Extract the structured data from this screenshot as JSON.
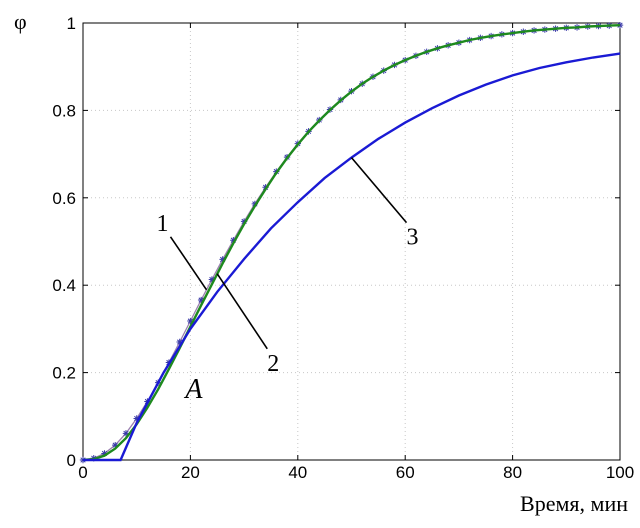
{
  "chart_data": {
    "type": "line",
    "title": "",
    "xlabel": "Время, мин",
    "ylabel": "φ",
    "xlim": [
      0,
      100
    ],
    "ylim": [
      0,
      1
    ],
    "x_ticks": [
      "0",
      "20",
      "40",
      "60",
      "80",
      "100"
    ],
    "y_ticks": [
      "0",
      "0.2",
      "0.4",
      "0.6",
      "0.8",
      "1"
    ],
    "grid": true,
    "series": [
      {
        "name": "1",
        "color": "#9a7fb0",
        "marker": "star",
        "x": [
          0,
          2,
          4,
          6,
          8,
          10,
          12,
          14,
          16,
          18,
          20,
          22,
          24,
          26,
          28,
          30,
          32,
          34,
          36,
          38,
          40,
          42,
          44,
          46,
          48,
          50,
          52,
          54,
          56,
          58,
          60,
          62,
          64,
          66,
          68,
          70,
          72,
          74,
          76,
          78,
          80,
          82,
          84,
          86,
          88,
          90,
          92,
          94,
          96,
          98,
          100
        ],
        "y": [
          0.0,
          0.004,
          0.015,
          0.034,
          0.061,
          0.095,
          0.134,
          0.177,
          0.223,
          0.27,
          0.318,
          0.366,
          0.413,
          0.459,
          0.503,
          0.546,
          0.586,
          0.624,
          0.66,
          0.693,
          0.724,
          0.752,
          0.778,
          0.802,
          0.824,
          0.844,
          0.861,
          0.877,
          0.891,
          0.904,
          0.915,
          0.925,
          0.934,
          0.942,
          0.949,
          0.955,
          0.961,
          0.966,
          0.97,
          0.974,
          0.977,
          0.98,
          0.983,
          0.985,
          0.987,
          0.989,
          0.99,
          0.992,
          0.993,
          0.994,
          0.995
        ]
      },
      {
        "name": "2",
        "color": "#1e8a1e",
        "x": [
          0,
          2,
          4,
          6,
          8,
          10,
          12,
          14,
          16,
          18,
          20,
          22,
          24,
          26,
          28,
          30,
          32,
          34,
          36,
          38,
          40,
          42,
          44,
          46,
          48,
          50,
          52,
          54,
          56,
          58,
          60,
          62,
          64,
          66,
          68,
          70,
          72,
          74,
          76,
          78,
          80,
          82,
          84,
          86,
          88,
          90,
          92,
          94,
          96,
          98,
          100
        ],
        "y": [
          0.0,
          0.002,
          0.01,
          0.026,
          0.05,
          0.082,
          0.12,
          0.162,
          0.208,
          0.256,
          0.305,
          0.354,
          0.402,
          0.45,
          0.496,
          0.54,
          0.581,
          0.62,
          0.657,
          0.691,
          0.722,
          0.751,
          0.777,
          0.801,
          0.823,
          0.843,
          0.861,
          0.877,
          0.891,
          0.904,
          0.915,
          0.925,
          0.934,
          0.942,
          0.949,
          0.955,
          0.961,
          0.966,
          0.97,
          0.974,
          0.977,
          0.98,
          0.983,
          0.985,
          0.987,
          0.989,
          0.99,
          0.992,
          0.993,
          0.994,
          0.995
        ]
      },
      {
        "name": "3",
        "color": "#1a1ad4",
        "x": [
          0,
          7,
          10,
          15,
          20,
          25,
          30,
          35,
          40,
          45,
          50,
          55,
          60,
          65,
          70,
          75,
          80,
          85,
          90,
          95,
          100
        ],
        "y": [
          0.0,
          0.0,
          0.085,
          0.2,
          0.3,
          0.385,
          0.46,
          0.53,
          0.59,
          0.645,
          0.692,
          0.735,
          0.772,
          0.805,
          0.834,
          0.859,
          0.88,
          0.897,
          0.91,
          0.921,
          0.93
        ]
      }
    ],
    "annotations": [
      {
        "text": "1",
        "curve": 0,
        "at_x": 23
      },
      {
        "text": "2",
        "curve": 1,
        "at_x": 25
      },
      {
        "text": "3",
        "curve": 2,
        "at_x": 50
      },
      {
        "text": "A",
        "x": 20,
        "y": 0.27
      }
    ]
  }
}
